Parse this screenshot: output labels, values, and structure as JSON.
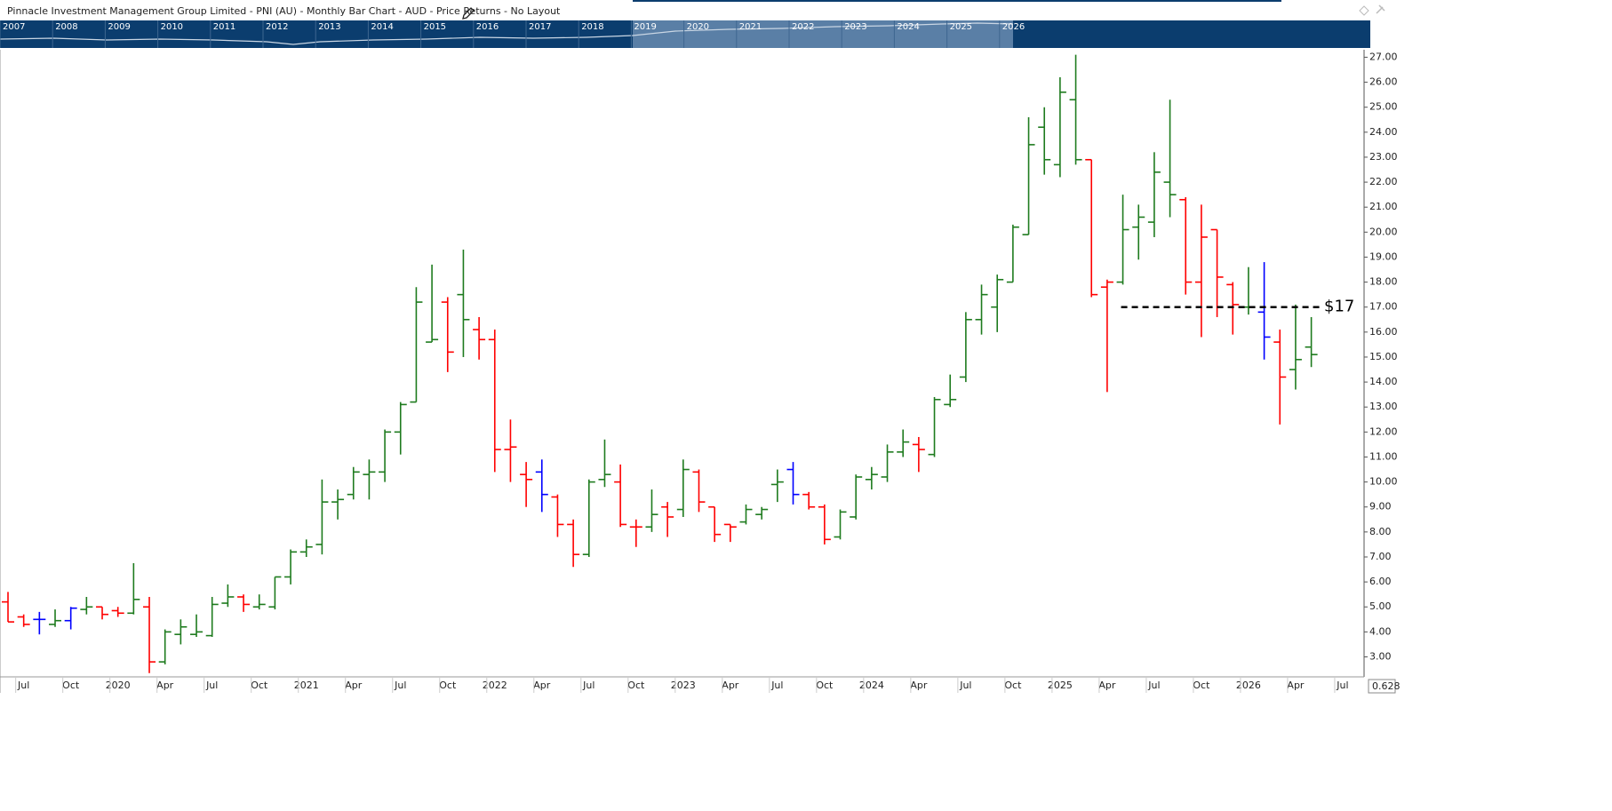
{
  "header": {
    "title": "Pinnacle Investment Management Group Limited - PNI (AU) - Monthly Bar Chart - AUD - Price Returns - No Layout"
  },
  "navigator": {
    "years": [
      "2007",
      "2008",
      "2009",
      "2010",
      "2011",
      "2012",
      "2013",
      "2014",
      "2015",
      "2016",
      "2017",
      "2018",
      "2019",
      "2020",
      "2021",
      "2022",
      "2023",
      "2024",
      "2025",
      "2026"
    ]
  },
  "corner": "0.628",
  "chart_data": {
    "type": "ohlc",
    "categories": [
      null,
      "Jul",
      null,
      null,
      "Oct",
      null,
      null,
      "2020",
      null,
      null,
      "Apr",
      null,
      null,
      "Jul",
      null,
      null,
      "Oct",
      null,
      null,
      "2021",
      null,
      null,
      "Apr",
      null,
      null,
      "Jul",
      null,
      null,
      "Oct",
      null,
      null,
      "2022",
      null,
      null,
      "Apr",
      null,
      null,
      "Jul",
      null,
      null,
      "Oct",
      null,
      null,
      "2023",
      null,
      null,
      "Apr",
      null,
      null,
      "Jul",
      null,
      null,
      "Oct",
      null,
      null,
      "2024",
      null,
      null,
      "Apr",
      null,
      null,
      "Jul",
      null,
      null,
      "Oct",
      null,
      null,
      "2025",
      null,
      null,
      "Apr",
      null,
      null,
      "Jul",
      null,
      null,
      "Oct",
      null,
      null,
      "2026",
      null,
      null,
      "Apr",
      null,
      null,
      "Jul"
    ],
    "open": [
      5.2,
      4.6,
      4.5,
      4.3,
      4.45,
      4.9,
      5.0,
      4.85,
      4.75,
      5.0,
      2.8,
      3.9,
      3.9,
      3.85,
      5.15,
      5.4,
      5.0,
      5.0,
      6.2,
      7.2,
      7.5,
      9.2,
      9.5,
      10.3,
      10.4,
      12.0,
      13.2,
      15.6,
      17.2,
      17.5,
      16.1,
      15.7,
      11.3,
      10.3,
      10.4,
      9.4,
      8.3,
      7.1,
      10.1,
      10.0,
      8.2,
      8.2,
      9.0,
      8.9,
      10.4,
      9.0,
      8.3,
      8.4,
      8.7,
      9.9,
      10.5,
      9.5,
      9.0,
      7.8,
      8.6,
      10.1,
      10.2,
      11.2,
      11.5,
      11.1,
      13.1,
      14.2,
      16.5,
      17.0,
      18.0,
      19.9,
      24.2,
      22.7,
      25.3,
      22.9,
      17.8,
      18.0,
      20.2,
      20.4,
      22.0,
      21.3,
      18.0,
      20.1,
      17.9,
      17.0,
      16.8,
      15.6,
      14.5,
      15.4,
      null,
      null
    ],
    "high": [
      5.6,
      4.7,
      4.8,
      4.9,
      5.0,
      5.4,
      5.0,
      5.0,
      6.75,
      5.4,
      4.1,
      4.5,
      4.7,
      5.4,
      5.9,
      5.5,
      5.5,
      6.2,
      7.3,
      7.7,
      10.1,
      9.7,
      10.6,
      10.9,
      12.1,
      13.2,
      17.8,
      18.7,
      17.4,
      19.3,
      16.6,
      16.1,
      12.5,
      10.8,
      10.9,
      9.5,
      8.5,
      10.1,
      11.7,
      10.7,
      8.5,
      9.7,
      9.2,
      10.9,
      10.5,
      9.0,
      8.3,
      9.1,
      9.0,
      10.5,
      10.8,
      9.6,
      9.1,
      8.9,
      10.3,
      10.6,
      11.5,
      12.1,
      11.8,
      13.4,
      14.3,
      16.8,
      17.9,
      18.3,
      20.3,
      24.6,
      25.0,
      26.2,
      27.1,
      22.9,
      18.1,
      21.5,
      21.1,
      23.2,
      25.3,
      21.4,
      21.1,
      20.1,
      18.0,
      18.6,
      18.8,
      16.1,
      17.1,
      16.6,
      null,
      null
    ],
    "low": [
      4.4,
      4.2,
      3.9,
      4.2,
      4.1,
      4.7,
      4.5,
      4.6,
      4.7,
      2.35,
      2.7,
      3.5,
      3.8,
      3.8,
      5.0,
      4.8,
      4.9,
      4.9,
      5.9,
      7.0,
      7.1,
      8.5,
      9.3,
      9.3,
      10.0,
      11.1,
      13.2,
      15.6,
      14.4,
      15.0,
      14.9,
      10.4,
      10.0,
      9.0,
      8.8,
      7.8,
      6.6,
      7.0,
      9.8,
      8.2,
      7.4,
      8.0,
      7.8,
      8.6,
      8.8,
      7.6,
      7.6,
      8.3,
      8.5,
      9.2,
      9.1,
      8.9,
      7.5,
      7.7,
      8.5,
      9.7,
      10.0,
      11.0,
      10.4,
      11.0,
      13.0,
      14.0,
      15.9,
      16.0,
      18.0,
      19.9,
      22.3,
      22.2,
      22.7,
      17.4,
      13.6,
      17.9,
      18.9,
      19.8,
      20.6,
      17.5,
      15.8,
      16.6,
      15.9,
      16.7,
      14.9,
      12.3,
      13.7,
      14.6,
      null,
      null
    ],
    "close": [
      4.4,
      4.3,
      4.5,
      4.45,
      4.95,
      5.0,
      4.7,
      4.75,
      5.3,
      2.8,
      4.0,
      4.2,
      4.0,
      5.1,
      5.4,
      5.1,
      5.1,
      6.2,
      7.2,
      7.4,
      9.2,
      9.3,
      10.4,
      10.4,
      12.0,
      13.1,
      17.2,
      15.7,
      15.2,
      16.5,
      15.7,
      11.3,
      11.4,
      10.1,
      9.5,
      8.3,
      7.1,
      10.0,
      10.3,
      8.3,
      8.2,
      8.7,
      8.6,
      10.5,
      9.2,
      7.9,
      8.2,
      8.9,
      8.9,
      10.0,
      9.5,
      9.0,
      7.7,
      8.8,
      10.2,
      10.3,
      11.2,
      11.6,
      11.3,
      13.3,
      13.3,
      16.5,
      17.5,
      18.1,
      20.2,
      23.5,
      22.9,
      25.6,
      22.9,
      17.5,
      18.0,
      20.1,
      20.6,
      22.4,
      21.5,
      18.0,
      19.8,
      18.2,
      17.1,
      17.0,
      15.8,
      14.2,
      14.9,
      15.1,
      null,
      null
    ],
    "colors": [
      "#ff0000",
      "#ff0000",
      "#0000ff",
      "#1e7b1e",
      "#0000ff",
      "#1e7b1e",
      "#ff0000",
      "#ff0000",
      "#1e7b1e",
      "#ff0000",
      "#1e7b1e",
      "#1e7b1e",
      "#1e7b1e",
      "#1e7b1e",
      "#1e7b1e",
      "#ff0000",
      "#1e7b1e",
      "#1e7b1e",
      "#1e7b1e",
      "#1e7b1e",
      "#1e7b1e",
      "#1e7b1e",
      "#1e7b1e",
      "#1e7b1e",
      "#1e7b1e",
      "#1e7b1e",
      "#1e7b1e",
      "#1e7b1e",
      "#ff0000",
      "#1e7b1e",
      "#ff0000",
      "#ff0000",
      "#ff0000",
      "#ff0000",
      "#0000ff",
      "#ff0000",
      "#ff0000",
      "#1e7b1e",
      "#1e7b1e",
      "#ff0000",
      "#ff0000",
      "#1e7b1e",
      "#ff0000",
      "#1e7b1e",
      "#ff0000",
      "#ff0000",
      "#ff0000",
      "#1e7b1e",
      "#1e7b1e",
      "#1e7b1e",
      "#0000ff",
      "#ff0000",
      "#ff0000",
      "#1e7b1e",
      "#1e7b1e",
      "#1e7b1e",
      "#1e7b1e",
      "#1e7b1e",
      "#ff0000",
      "#1e7b1e",
      "#1e7b1e",
      "#1e7b1e",
      "#1e7b1e",
      "#1e7b1e",
      "#1e7b1e",
      "#1e7b1e",
      "#1e7b1e",
      "#1e7b1e",
      "#1e7b1e",
      "#ff0000",
      "#ff0000",
      "#1e7b1e",
      "#1e7b1e",
      "#1e7b1e",
      "#1e7b1e",
      "#ff0000",
      "#ff0000",
      "#ff0000",
      "#ff0000",
      "#1e7b1e",
      "#0000ff",
      "#ff0000",
      "#1e7b1e",
      "#1e7b1e",
      null,
      null
    ],
    "ylim": [
      2.2,
      27.3
    ],
    "yticks": [
      {
        "value": 3,
        "label": "3.00"
      },
      {
        "value": 4,
        "label": "4.00"
      },
      {
        "value": 5,
        "label": "5.00"
      },
      {
        "value": 6,
        "label": "6.00"
      },
      {
        "value": 7,
        "label": "7.00"
      },
      {
        "value": 8,
        "label": "8.00"
      },
      {
        "value": 9,
        "label": "9.00"
      },
      {
        "value": 10,
        "label": "10.00"
      },
      {
        "value": 11,
        "label": "11.00"
      },
      {
        "value": 12,
        "label": "12.00"
      },
      {
        "value": 13,
        "label": "13.00"
      },
      {
        "value": 14,
        "label": "14.00"
      },
      {
        "value": 15,
        "label": "15.00"
      },
      {
        "value": 16,
        "label": "16.00"
      },
      {
        "value": 17,
        "label": "17.00"
      },
      {
        "value": 18,
        "label": "18.00"
      },
      {
        "value": 19,
        "label": "19.00"
      },
      {
        "value": 20,
        "label": "20.00"
      },
      {
        "value": 21,
        "label": "21.00"
      },
      {
        "value": 22,
        "label": "22.00"
      },
      {
        "value": 23,
        "label": "23.00"
      },
      {
        "value": 24,
        "label": "24.00"
      },
      {
        "value": 25,
        "label": "25.00"
      },
      {
        "value": 26,
        "label": "26.00"
      },
      {
        "value": 27,
        "label": "27.00"
      }
    ],
    "annotation": {
      "text": "$17",
      "value": 17
    }
  }
}
